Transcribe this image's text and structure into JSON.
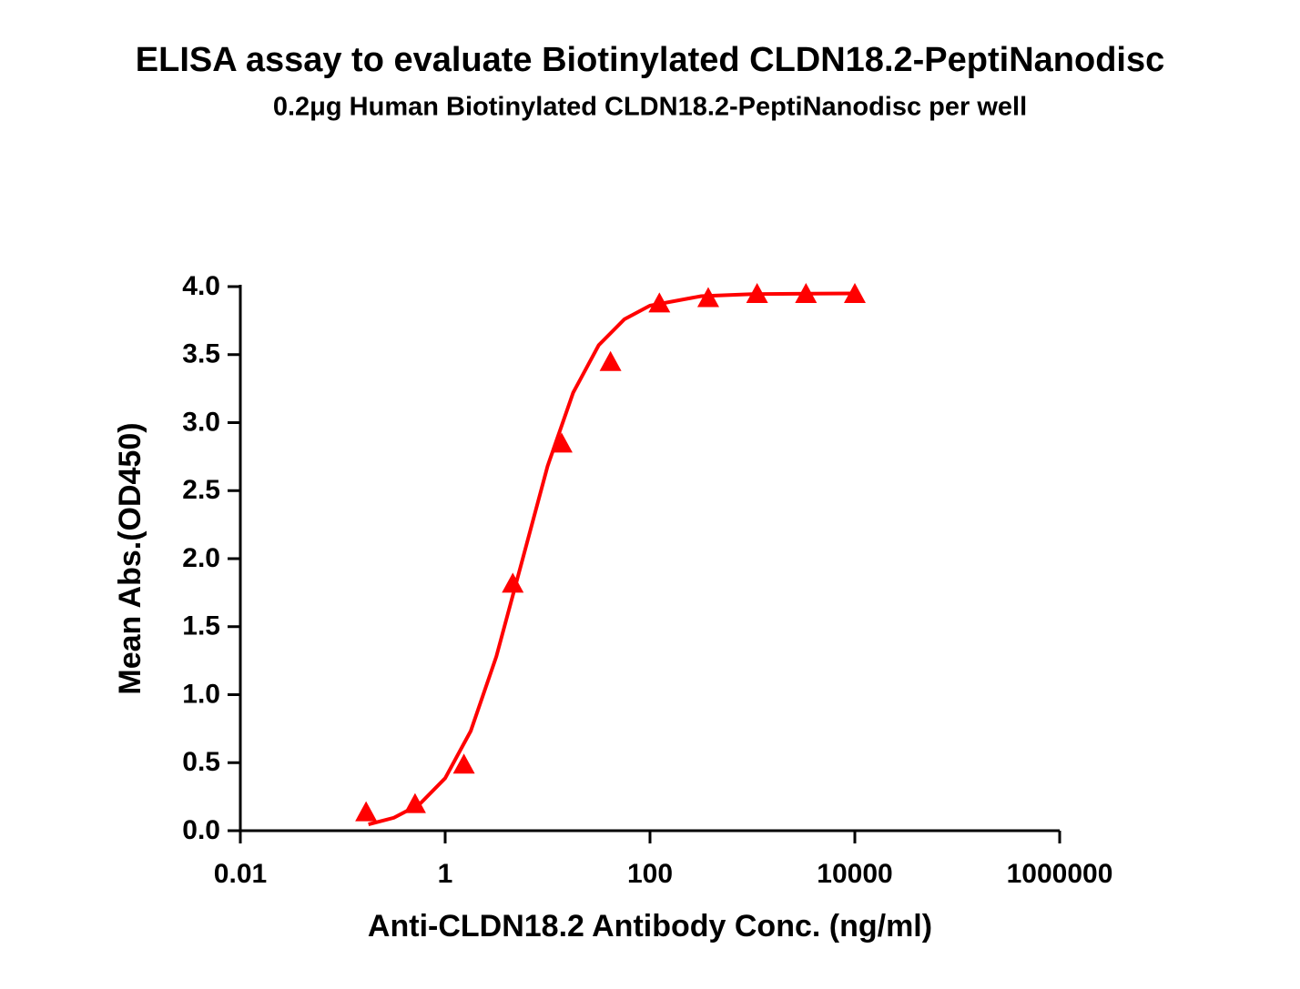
{
  "chart_data": {
    "type": "scatter",
    "title": "ELISA assay to evaluate Biotinylated CLDN18.2-PeptiNanodisc",
    "subtitle": "0.2μg Human Biotinylated CLDN18.2-PeptiNanodisc per well",
    "x_label": "Anti-CLDN18.2 Antibody Conc. (ng/ml)",
    "y_label": "Mean Abs.(OD450)",
    "x_scale": "log",
    "xlim": [
      0.01,
      1000000
    ],
    "xticks": [
      0.01,
      1,
      100,
      10000,
      1000000
    ],
    "ylim": [
      0,
      4
    ],
    "yticks": [
      {
        "value": 0,
        "label": "0.0"
      },
      {
        "value": 0.5,
        "label": "0.5"
      },
      {
        "value": 1,
        "label": "1.0"
      },
      {
        "value": 1.5,
        "label": "1.5"
      },
      {
        "value": 2,
        "label": "2.0"
      },
      {
        "value": 2.5,
        "label": "2.5"
      },
      {
        "value": 3,
        "label": "3.0"
      },
      {
        "value": 3.5,
        "label": "3.5"
      },
      {
        "value": 4,
        "label": "4.0"
      }
    ],
    "series": [
      {
        "color": "#ff0000",
        "marker": "triangle",
        "x": [
          0.169,
          0.508,
          1.524,
          4.572,
          13.72,
          41.15,
          123.5,
          370.4,
          1111,
          3333,
          10000
        ],
        "values": [
          0.13,
          0.19,
          0.48,
          1.81,
          2.84,
          3.44,
          3.87,
          3.91,
          3.94,
          3.94,
          3.94
        ]
      },
      {
        "color": "#ff0000",
        "marker": "none",
        "x": [
          0.178,
          0.316,
          0.562,
          1,
          1.778,
          3.162,
          5.623,
          10,
          17.78,
          31.62,
          56.23,
          100,
          316.2,
          1000,
          10000
        ],
        "values": [
          0.046,
          0.095,
          0.194,
          0.386,
          0.733,
          1.28,
          1.98,
          2.68,
          3.22,
          3.57,
          3.76,
          3.86,
          3.93,
          3.945,
          3.95
        ]
      }
    ]
  }
}
